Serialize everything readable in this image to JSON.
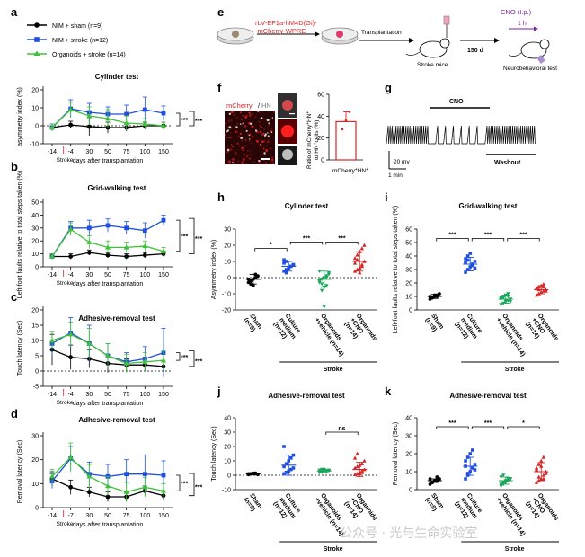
{
  "panels": {
    "a": "a",
    "b": "b",
    "c": "c",
    "d": "d",
    "e": "e",
    "f": "f",
    "g": "g",
    "h": "h",
    "i": "i",
    "j": "j",
    "k": "k"
  },
  "legend": {
    "items": [
      {
        "label": "NIM + sham (n=9)",
        "color": "#000000"
      },
      {
        "label": "NIM + stroke (n=12)",
        "color": "#1f4fe0"
      },
      {
        "label": "Organoids + stroke (n=14)",
        "color": "#3fc23a"
      }
    ]
  },
  "stroke_marker": "Stroke",
  "line_xlabel": "days after transplantation",
  "line_xticks": [
    "-14",
    "-4",
    "30",
    "50",
    "75",
    "100",
    "150"
  ],
  "line_xticks_d": [
    "-14",
    "-7",
    "30",
    "50",
    "75",
    "100",
    "150"
  ],
  "star3": "***",
  "star1": "*",
  "ns": "ns",
  "schematic": {
    "virus": "rLV-EF1a-hM4D(Gi)-",
    "virus2": "-mCherry-WPRE",
    "transplant": "Transplantation",
    "stroke_mice": "Stroke mice",
    "days": "150 d",
    "cno": "CNO (I.p.)",
    "hour": "1 h",
    "test": "Neurobehavioral test"
  },
  "panel_f": {
    "label_a": "mCherry",
    "label_sep": "/",
    "label_b": "HN",
    "ylabel1": "Ratio of mCherry",
    "ylabel2": "to HN",
    "xlabel": "mCherry",
    "sup": "+",
    "hn": "HN",
    "ylabel1_tail": "HN",
    "ylabel2_tail": "cells (%)",
    "yticks": [
      "0",
      "20",
      "40",
      "60"
    ],
    "value": 35,
    "error": 9
  },
  "panel_g": {
    "cno": "CNO",
    "washout": "Washout",
    "scale_v": "20 mv",
    "scale_t": "1 min"
  },
  "bar_xcats": [
    "Sham (n=9)",
    "Culture medium (n=12)",
    "Organoids +vehicle (n=14)",
    "Organoids +CNO (n=14)"
  ],
  "bar_xcats_lines": [
    [
      "Sham",
      "(n=9)"
    ],
    [
      "Culture",
      "medium",
      "(n=12)"
    ],
    [
      "Organoids",
      "+vehicle (n=14)"
    ],
    [
      "Organoids",
      "+CNO",
      "(n=14)"
    ]
  ],
  "bar_colors": [
    "#000000",
    "#1f4fe0",
    "#1aa55a",
    "#d62728"
  ],
  "stroke_group": "Stroke",
  "watermark": "公众号 · 光与生命实验室",
  "chart_data": [
    {
      "panel": "a",
      "type": "line",
      "title": "Cylinder test",
      "ylabel": "asymmetry index (%)",
      "x": [
        -14,
        -4,
        30,
        50,
        75,
        100,
        150
      ],
      "ylim": [
        -10,
        20
      ],
      "yticks": [
        -10,
        0,
        10,
        20
      ],
      "series": [
        {
          "name": "NIM + sham (n=9)",
          "values": [
            -1,
            0.5,
            -0.5,
            -1,
            -1,
            0,
            0
          ],
          "err": [
            2,
            2,
            5,
            3,
            2,
            2,
            2
          ]
        },
        {
          "name": "NIM + stroke (n=12)",
          "values": [
            -1,
            9.5,
            7.5,
            6.5,
            6.5,
            9,
            7
          ],
          "err": [
            2,
            5,
            5,
            4,
            5,
            7,
            4
          ]
        },
        {
          "name": "Organoids + stroke (n=14)",
          "values": [
            -1,
            9,
            5.5,
            4,
            1.5,
            1,
            0
          ],
          "err": [
            2,
            4,
            5,
            5,
            4,
            3,
            2
          ]
        }
      ],
      "sig": [
        "***",
        "***"
      ]
    },
    {
      "panel": "b",
      "type": "line",
      "title": "Grid-walking test",
      "ylabel": "Left-foot faults relative to total steps taken (%)",
      "x": [
        -14,
        -4,
        30,
        50,
        75,
        100,
        150
      ],
      "ylim": [
        0,
        50
      ],
      "yticks": [
        0,
        10,
        20,
        30,
        40,
        50
      ],
      "series": [
        {
          "name": "NIM + sham (n=9)",
          "values": [
            8,
            8,
            11,
            9,
            8,
            9,
            10
          ],
          "err": [
            2,
            2,
            2,
            2,
            2,
            2,
            2
          ]
        },
        {
          "name": "NIM + stroke (n=12)",
          "values": [
            8,
            30,
            30,
            32,
            30,
            28,
            36
          ],
          "err": [
            2,
            5,
            6,
            5,
            5,
            6,
            4
          ]
        },
        {
          "name": "Organoids + stroke (n=14)",
          "values": [
            8,
            29,
            19,
            15,
            15,
            16,
            12
          ],
          "err": [
            2,
            5,
            5,
            5,
            4,
            4,
            3
          ]
        }
      ],
      "sig": [
        "***",
        "***"
      ]
    },
    {
      "panel": "c",
      "type": "line",
      "title": "Adhesive-removal test",
      "ylabel": "Touch latency (Sec)",
      "x": [
        -14,
        -4,
        30,
        50,
        75,
        100,
        150
      ],
      "ylim": [
        -5,
        20
      ],
      "yticks": [
        -5,
        0,
        5,
        10,
        15,
        20
      ],
      "series": [
        {
          "name": "NIM + sham (n=9)",
          "values": [
            7,
            4.5,
            4,
            2.5,
            2,
            2,
            1.5
          ],
          "err": [
            5,
            4,
            3,
            3,
            2,
            2,
            1.5
          ]
        },
        {
          "name": "NIM + stroke (n=12)",
          "values": [
            9,
            12.5,
            9,
            5,
            3,
            4,
            6
          ],
          "err": [
            4,
            5,
            6,
            4,
            3,
            4,
            8
          ]
        },
        {
          "name": "Organoids + stroke (n=14)",
          "values": [
            10,
            12,
            9,
            5,
            2.5,
            3,
            3.5
          ],
          "err": [
            3,
            4,
            5,
            4,
            3,
            3,
            3
          ]
        }
      ],
      "sig": [
        "***",
        "***"
      ]
    },
    {
      "panel": "d",
      "type": "line",
      "title": "Adhesive-removal test",
      "ylabel": "Removal latency (Sec)",
      "x": [
        -14,
        -7,
        30,
        50,
        75,
        100,
        150
      ],
      "ylim": [
        0,
        30
      ],
      "yticks": [
        0,
        10,
        20,
        30
      ],
      "series": [
        {
          "name": "NIM + sham (n=9)",
          "values": [
            12,
            8.5,
            6.5,
            4.5,
            4.5,
            7,
            5
          ],
          "err": [
            3,
            3,
            2,
            2,
            2,
            2,
            2
          ]
        },
        {
          "name": "NIM + stroke (n=12)",
          "values": [
            11,
            20.5,
            14,
            13,
            14,
            14,
            13.5
          ],
          "err": [
            3,
            5,
            5,
            5,
            6,
            8,
            6
          ]
        },
        {
          "name": "Organoids + stroke (n=14)",
          "values": [
            13,
            21,
            13,
            9,
            6.5,
            8.5,
            7
          ],
          "err": [
            3,
            6,
            5,
            4,
            4,
            4,
            3
          ]
        }
      ],
      "sig": [
        "***",
        "***"
      ]
    },
    {
      "panel": "h",
      "type": "scatter",
      "title": "Cylinder test",
      "ylabel": "Asymmetry index (%)",
      "ylim": [
        -20,
        30
      ],
      "yticks": [
        -20,
        -10,
        0,
        10,
        20,
        30
      ],
      "groups": [
        {
          "name": "Sham (n=9)",
          "mean": -1,
          "sd": 3,
          "points": [
            -3,
            -2,
            -1,
            0,
            1,
            -1,
            -4,
            -5,
            2
          ]
        },
        {
          "name": "Culture medium (n=12)",
          "mean": 7,
          "sd": 3,
          "points": [
            4,
            5,
            6,
            7,
            8,
            9,
            10,
            6,
            7,
            8,
            11,
            3
          ]
        },
        {
          "name": "Organoids +vehicle (n=14)",
          "mean": -1,
          "sd": 5,
          "points": [
            -2,
            -1,
            0,
            1,
            2,
            -3,
            -4,
            -6,
            -5,
            3,
            4,
            -8,
            -18,
            0
          ]
        },
        {
          "name": "Organoids +CNO (n=14)",
          "mean": 10,
          "sd": 6,
          "points": [
            4,
            5,
            6,
            8,
            10,
            12,
            14,
            16,
            18,
            20,
            9,
            11,
            3,
            7
          ]
        }
      ],
      "sig": [
        "*",
        "***",
        "***"
      ]
    },
    {
      "panel": "i",
      "type": "scatter",
      "title": "Grid-walking test",
      "ylabel": "Left-foot faults relative to total steps taken (%)",
      "ylim": [
        0,
        60
      ],
      "yticks": [
        0,
        10,
        20,
        30,
        40,
        50,
        60
      ],
      "groups": [
        {
          "name": "Sham (n=9)",
          "mean": 10,
          "sd": 1.5,
          "points": [
            8,
            9,
            10,
            11,
            12,
            10,
            9,
            11,
            10
          ]
        },
        {
          "name": "Culture medium (n=12)",
          "mean": 34,
          "sd": 5,
          "points": [
            28,
            30,
            32,
            34,
            36,
            38,
            40,
            42,
            33,
            31,
            35,
            37
          ]
        },
        {
          "name": "Organoids +vehicle (n=14)",
          "mean": 8,
          "sd": 3,
          "points": [
            4,
            5,
            6,
            7,
            8,
            9,
            10,
            11,
            12,
            6,
            8,
            9,
            7,
            10
          ]
        },
        {
          "name": "Organoids +CNO (n=14)",
          "mean": 15,
          "sd": 3,
          "points": [
            11,
            12,
            13,
            14,
            15,
            16,
            17,
            18,
            19,
            14,
            16,
            15,
            13,
            17
          ]
        }
      ],
      "sig": [
        "***",
        "***",
        "***"
      ]
    },
    {
      "panel": "j",
      "type": "scatter",
      "title": "Adhesive-removal test",
      "ylabel": "Touch latency (Sec)",
      "ylim": [
        -10,
        40
      ],
      "yticks": [
        -10,
        0,
        10,
        20,
        30,
        40
      ],
      "groups": [
        {
          "name": "Sham (n=9)",
          "mean": 1,
          "sd": 0.5,
          "points": [
            0.5,
            1,
            1,
            1.5,
            0.5,
            1,
            1,
            1.5,
            1
          ]
        },
        {
          "name": "Culture medium (n=12)",
          "mean": 7,
          "sd": 7,
          "points": [
            1,
            2,
            3,
            4,
            5,
            6,
            8,
            10,
            12,
            14,
            20,
            2
          ]
        },
        {
          "name": "Organoids +vehicle (n=14)",
          "mean": 3,
          "sd": 1,
          "points": [
            2,
            2.5,
            3,
            3,
            3.5,
            2,
            4,
            3,
            2.5,
            3,
            3.5,
            2,
            4,
            3
          ]
        },
        {
          "name": "Organoids +CNO (n=14)",
          "mean": 4,
          "sd": 5,
          "points": [
            0.5,
            1,
            2,
            3,
            4,
            5,
            6,
            7,
            8,
            10,
            12,
            15,
            1,
            2
          ]
        }
      ],
      "sig": [
        "ns"
      ]
    },
    {
      "panel": "k",
      "type": "scatter",
      "title": "Adhesive-removal test",
      "ylabel": "Removal latency (Sec)",
      "ylim": [
        0,
        40
      ],
      "yticks": [
        0,
        10,
        20,
        30,
        40
      ],
      "groups": [
        {
          "name": "Sham (n=9)",
          "mean": 5,
          "sd": 1,
          "points": [
            3,
            4,
            5,
            5,
            6,
            6,
            4,
            5,
            7
          ]
        },
        {
          "name": "Culture medium (n=12)",
          "mean": 13,
          "sd": 5,
          "points": [
            6,
            8,
            10,
            12,
            14,
            16,
            18,
            20,
            22,
            11,
            13,
            9
          ]
        },
        {
          "name": "Organoids +vehicle (n=14)",
          "mean": 5,
          "sd": 2,
          "points": [
            2,
            3,
            4,
            5,
            6,
            7,
            8,
            4,
            5,
            6,
            3,
            4,
            5,
            6
          ]
        },
        {
          "name": "Organoids +CNO (n=14)",
          "mean": 10,
          "sd": 5,
          "points": [
            4,
            5,
            6,
            8,
            10,
            12,
            14,
            16,
            18,
            9,
            11,
            7,
            13,
            6
          ]
        }
      ],
      "sig": [
        "***",
        "***",
        "*"
      ]
    }
  ]
}
